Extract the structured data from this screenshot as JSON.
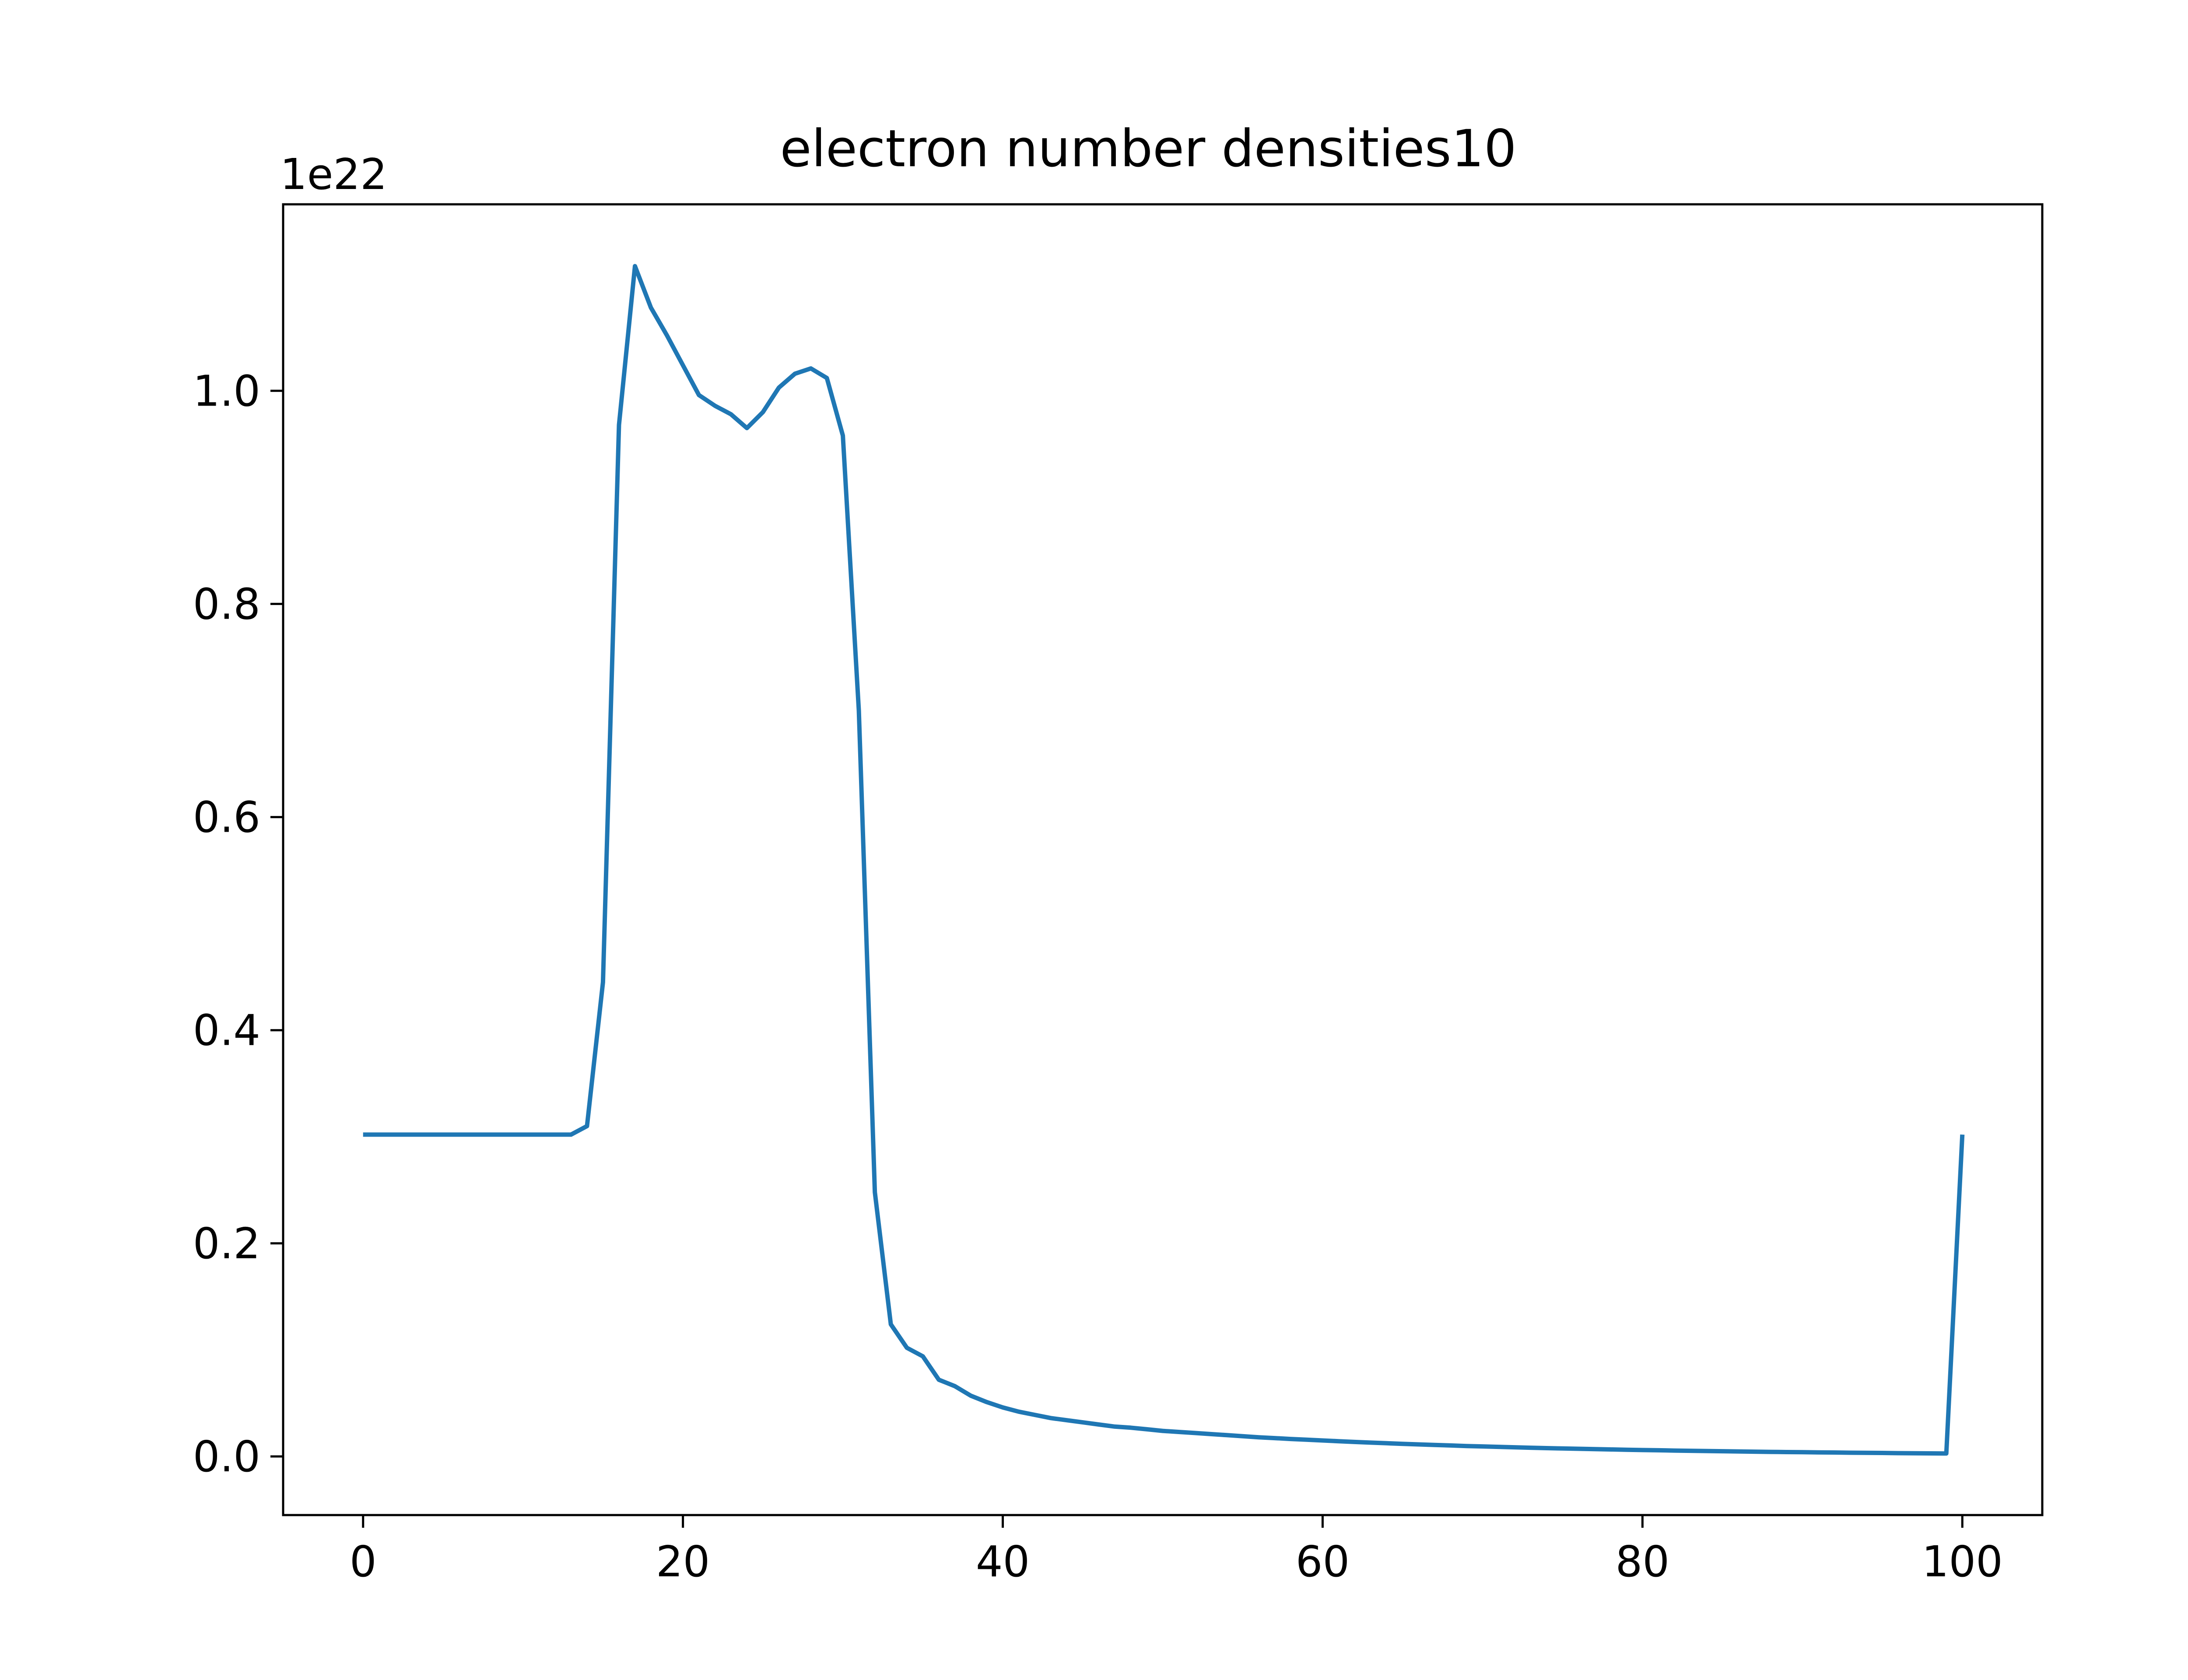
{
  "chart_data": {
    "type": "line",
    "title": "electron number densities10",
    "xlabel": "",
    "ylabel": "",
    "offset_label": "1e22",
    "xlim": [
      -5,
      105
    ],
    "ylim": [
      -0.055,
      1.175
    ],
    "xticks": [
      0,
      20,
      40,
      60,
      80,
      100
    ],
    "xtick_labels": [
      "0",
      "20",
      "40",
      "60",
      "80",
      "100"
    ],
    "yticks": [
      0.0,
      0.2,
      0.4,
      0.6,
      0.8,
      1.0
    ],
    "ytick_labels": [
      "0.0",
      "0.2",
      "0.4",
      "0.6",
      "0.8",
      "1.0"
    ],
    "grid": false,
    "series": [
      {
        "color": "#1f77b4",
        "x": [
          0,
          1,
          2,
          3,
          4,
          5,
          6,
          7,
          8,
          9,
          10,
          11,
          12,
          13,
          14,
          15,
          16,
          17,
          18,
          19,
          20,
          21,
          22,
          23,
          24,
          25,
          26,
          27,
          28,
          29,
          30,
          31,
          32,
          33,
          34,
          35,
          36,
          37,
          38,
          39,
          40,
          41,
          42,
          43,
          44,
          45,
          46,
          47,
          48,
          49,
          50,
          51,
          52,
          53,
          54,
          55,
          56,
          57,
          58,
          59,
          60,
          61,
          62,
          63,
          64,
          65,
          66,
          67,
          68,
          69,
          70,
          71,
          72,
          73,
          74,
          75,
          76,
          77,
          78,
          79,
          80,
          81,
          82,
          83,
          84,
          85,
          86,
          87,
          88,
          89,
          90,
          91,
          92,
          93,
          94,
          95,
          96,
          97,
          98,
          99,
          100
        ],
        "y": [
          0.302,
          0.302,
          0.302,
          0.302,
          0.302,
          0.302,
          0.302,
          0.302,
          0.302,
          0.302,
          0.302,
          0.302,
          0.302,
          0.302,
          0.31,
          0.445,
          0.968,
          1.117,
          1.078,
          1.052,
          1.024,
          0.996,
          0.986,
          0.978,
          0.965,
          0.98,
          1.003,
          1.016,
          1.021,
          1.012,
          0.958,
          0.7,
          0.248,
          0.124,
          0.102,
          0.094,
          0.072,
          0.066,
          0.057,
          0.051,
          0.046,
          0.042,
          0.039,
          0.036,
          0.034,
          0.032,
          0.03,
          0.028,
          0.027,
          0.0255,
          0.024,
          0.023,
          0.022,
          0.021,
          0.02,
          0.019,
          0.018,
          0.0172,
          0.0164,
          0.0157,
          0.015,
          0.0143,
          0.0136,
          0.013,
          0.0124,
          0.0118,
          0.0113,
          0.0108,
          0.0103,
          0.0098,
          0.0094,
          0.009,
          0.0086,
          0.0082,
          0.0078,
          0.0075,
          0.0072,
          0.0069,
          0.0066,
          0.0063,
          0.006,
          0.0058,
          0.0055,
          0.0053,
          0.0051,
          0.0049,
          0.0047,
          0.0045,
          0.0043,
          0.0041,
          0.004,
          0.0038,
          0.0037,
          0.0035,
          0.0034,
          0.0033,
          0.0031,
          0.003,
          0.0029,
          0.0028,
          0.302
        ]
      }
    ]
  }
}
